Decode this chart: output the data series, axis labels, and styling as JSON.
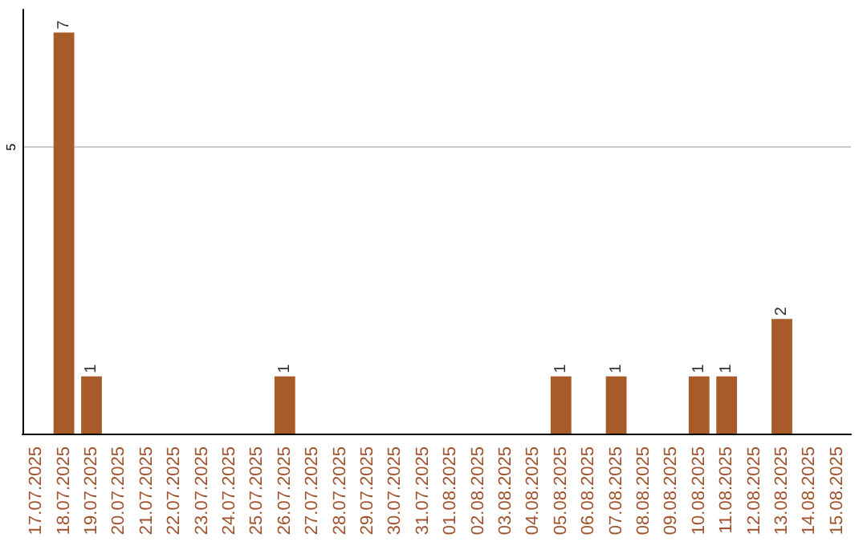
{
  "chart_data": {
    "type": "bar",
    "categories": [
      "17.07.2025",
      "18.07.2025",
      "19.07.2025",
      "20.07.2025",
      "21.07.2025",
      "22.07.2025",
      "23.07.2025",
      "24.07.2025",
      "25.07.2025",
      "26.07.2025",
      "27.07.2025",
      "28.07.2025",
      "29.07.2025",
      "30.07.2025",
      "31.07.2025",
      "01.08.2025",
      "02.08.2025",
      "03.08.2025",
      "04.08.2025",
      "05.08.2025",
      "06.08.2025",
      "07.08.2025",
      "08.08.2025",
      "09.08.2025",
      "10.08.2025",
      "11.08.2025",
      "12.08.2025",
      "13.08.2025",
      "14.08.2025",
      "15.08.2025"
    ],
    "values": [
      0,
      7,
      1,
      0,
      0,
      0,
      0,
      0,
      0,
      1,
      0,
      0,
      0,
      0,
      0,
      0,
      0,
      0,
      0,
      1,
      0,
      1,
      0,
      0,
      1,
      1,
      0,
      2,
      0,
      0
    ],
    "value_labels": [
      null,
      "7",
      "1",
      null,
      null,
      null,
      null,
      null,
      null,
      "1",
      null,
      null,
      null,
      null,
      null,
      null,
      null,
      null,
      null,
      "1",
      null,
      "1",
      null,
      null,
      "1",
      "1",
      null,
      "2",
      null,
      null
    ],
    "color": "#a65b29",
    "ylim": [
      0,
      7.4
    ],
    "yticks": [
      5
    ],
    "grid": "y"
  }
}
